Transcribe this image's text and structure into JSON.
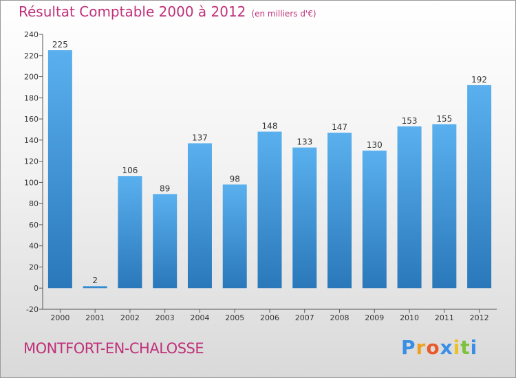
{
  "title": "Résultat Comptable 2000 à 2012",
  "subtitle": "(en milliers d'€)",
  "commune": "MONTFORT-EN-CHALOSSE",
  "logo": {
    "letters": [
      "P",
      "r",
      "o",
      "x",
      "i",
      "t",
      "i"
    ],
    "colors": [
      "#3a8ee6",
      "#f0a020",
      "#e85a2a",
      "#3a8ee6",
      "#f0c020",
      "#7cc23a",
      "#3a8ee6"
    ]
  },
  "colors": {
    "bar_top": "#5ab0ee",
    "bar_bottom": "#2a78ba",
    "title": "#c0317a"
  },
  "chart_data": {
    "type": "bar",
    "title": "Résultat Comptable 2000 à 2012",
    "ylabel": "en milliers d'€",
    "xlabel": "",
    "categories": [
      "2000",
      "2001",
      "2002",
      "2003",
      "2004",
      "2005",
      "2006",
      "2007",
      "2008",
      "2009",
      "2010",
      "2011",
      "2012"
    ],
    "values": [
      225,
      2,
      106,
      89,
      137,
      98,
      148,
      133,
      147,
      130,
      153,
      155,
      192
    ],
    "ylim": [
      -20,
      240
    ],
    "yticks": [
      -20,
      0,
      20,
      40,
      60,
      80,
      100,
      120,
      140,
      160,
      180,
      200,
      220,
      240
    ],
    "grid": false,
    "legend": "none"
  }
}
